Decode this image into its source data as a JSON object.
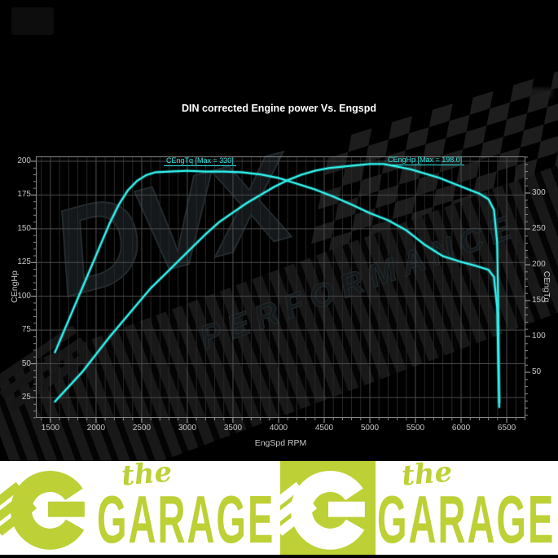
{
  "page": {
    "background": "#000000"
  },
  "chart": {
    "title": "DIN corrected Engine power Vs. Engspd",
    "xlabel": "EngSpd RPM",
    "ylabel_left": "CEngHp",
    "ylabel_right": "CEngTq",
    "annotations": {
      "tq": "CEngTq [Max = 330]",
      "hp": "CEngHp [Max = 198.0]"
    },
    "accent_color": "#2ee8e4"
  },
  "watermark": {
    "brand": "DVX",
    "subbrand": "PERFORMANCE"
  },
  "chart_data": {
    "type": "line",
    "title": "DIN corrected Engine power Vs. Engspd",
    "xlabel": "EngSpd RPM",
    "x_range": [
      1340,
      6705
    ],
    "x_ticks": [
      1500,
      2000,
      2500,
      3000,
      3500,
      4000,
      4500,
      5000,
      5500,
      6000,
      6500
    ],
    "x_minor_step": 100,
    "grid": true,
    "legend": "annotations on plot",
    "left_axis": {
      "label": "CEngHp",
      "range": [
        9.9,
        203.6
      ],
      "ticks": [
        25,
        50,
        75,
        100,
        125,
        150,
        175,
        200
      ],
      "minor_step": 5
    },
    "right_axis": {
      "label": "CEngTq",
      "range": [
        -13.6,
        351.1
      ],
      "ticks": [
        50,
        100,
        150,
        200,
        250,
        300
      ],
      "minor_step": 10
    },
    "series": [
      {
        "name": "CEngTq",
        "axis": "right",
        "color": "#2ee8e4",
        "max": 330,
        "annotation": "CEngTq [Max = 330]",
        "points": [
          [
            1550,
            78
          ],
          [
            1650,
            108
          ],
          [
            1750,
            138
          ],
          [
            1850,
            168
          ],
          [
            1950,
            198
          ],
          [
            2050,
            228
          ],
          [
            2150,
            258
          ],
          [
            2250,
            284
          ],
          [
            2350,
            304
          ],
          [
            2450,
            317
          ],
          [
            2550,
            325
          ],
          [
            2650,
            329
          ],
          [
            2800,
            330
          ],
          [
            3000,
            331
          ],
          [
            3200,
            330
          ],
          [
            3400,
            330
          ],
          [
            3600,
            329
          ],
          [
            3800,
            326
          ],
          [
            4000,
            321
          ],
          [
            4200,
            313
          ],
          [
            4400,
            305
          ],
          [
            4600,
            295
          ],
          [
            4800,
            284
          ],
          [
            5000,
            272
          ],
          [
            5200,
            262
          ],
          [
            5400,
            248
          ],
          [
            5600,
            228
          ],
          [
            5800,
            212
          ],
          [
            6000,
            204
          ],
          [
            6150,
            199
          ],
          [
            6300,
            193
          ],
          [
            6360,
            183
          ],
          [
            6395,
            140
          ],
          [
            6408,
            60
          ],
          [
            6418,
            8
          ]
        ]
      },
      {
        "name": "CEngHp",
        "axis": "left",
        "color": "#2ee8e4",
        "max": 198.0,
        "annotation": "CEngHp [Max = 198.0]",
        "points": [
          [
            1550,
            22
          ],
          [
            1700,
            33
          ],
          [
            1850,
            44
          ],
          [
            2000,
            57
          ],
          [
            2150,
            70
          ],
          [
            2300,
            82
          ],
          [
            2450,
            94
          ],
          [
            2600,
            106
          ],
          [
            2750,
            116
          ],
          [
            2900,
            126
          ],
          [
            3050,
            136
          ],
          [
            3200,
            146
          ],
          [
            3350,
            155
          ],
          [
            3500,
            162
          ],
          [
            3650,
            169
          ],
          [
            3800,
            175
          ],
          [
            3950,
            181
          ],
          [
            4100,
            186
          ],
          [
            4250,
            190
          ],
          [
            4400,
            193
          ],
          [
            4550,
            195
          ],
          [
            4700,
            196
          ],
          [
            4850,
            197
          ],
          [
            5000,
            198
          ],
          [
            5150,
            198
          ],
          [
            5300,
            196
          ],
          [
            5450,
            194
          ],
          [
            5600,
            191
          ],
          [
            5750,
            188
          ],
          [
            5900,
            184
          ],
          [
            6050,
            180
          ],
          [
            6200,
            176
          ],
          [
            6300,
            172
          ],
          [
            6360,
            164
          ],
          [
            6395,
            140
          ],
          [
            6408,
            90
          ],
          [
            6418,
            18
          ]
        ]
      }
    ]
  },
  "banner": {
    "lime": "#bdd035",
    "white": "#ffffff",
    "brand_line1": "the",
    "brand_line2": "GARAGE"
  }
}
